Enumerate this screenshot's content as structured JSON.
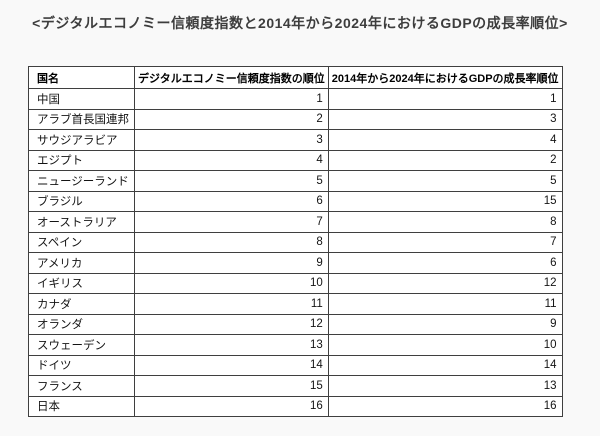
{
  "page": {
    "title": "<デジタルエコノミー信頼度指数と2014年から2024年におけるGDPの成長率順位>",
    "background_color": "#f9f9f9"
  },
  "table": {
    "headers": [
      "国名",
      "デジタルエコノミー信頼度指数の順位",
      "2014年から2024年におけるGDPの成長率順位"
    ],
    "border_color": "#3f3f3f",
    "cell_background": "#ffffff",
    "rows": [
      {
        "country": "中国",
        "digital_trust_rank": "1",
        "gdp_growth_rank": "1"
      },
      {
        "country": "アラブ首長国連邦",
        "digital_trust_rank": "2",
        "gdp_growth_rank": "3"
      },
      {
        "country": "サウジアラビア",
        "digital_trust_rank": "3",
        "gdp_growth_rank": "4"
      },
      {
        "country": "エジプト",
        "digital_trust_rank": "4",
        "gdp_growth_rank": "2"
      },
      {
        "country": "ニュージーランド",
        "digital_trust_rank": "5",
        "gdp_growth_rank": "5"
      },
      {
        "country": "ブラジル",
        "digital_trust_rank": "6",
        "gdp_growth_rank": "15"
      },
      {
        "country": "オーストラリア",
        "digital_trust_rank": "7",
        "gdp_growth_rank": "8"
      },
      {
        "country": "スペイン",
        "digital_trust_rank": "8",
        "gdp_growth_rank": "7"
      },
      {
        "country": "アメリカ",
        "digital_trust_rank": "9",
        "gdp_growth_rank": "6"
      },
      {
        "country": "イギリス",
        "digital_trust_rank": "10",
        "gdp_growth_rank": "12"
      },
      {
        "country": "カナダ",
        "digital_trust_rank": "11",
        "gdp_growth_rank": "11"
      },
      {
        "country": "オランダ",
        "digital_trust_rank": "12",
        "gdp_growth_rank": "9"
      },
      {
        "country": "スウェーデン",
        "digital_trust_rank": "13",
        "gdp_growth_rank": "10"
      },
      {
        "country": "ドイツ",
        "digital_trust_rank": "14",
        "gdp_growth_rank": "14"
      },
      {
        "country": "フランス",
        "digital_trust_rank": "15",
        "gdp_growth_rank": "13"
      },
      {
        "country": "日本",
        "digital_trust_rank": "16",
        "gdp_growth_rank": "16"
      }
    ]
  },
  "chart_data": {
    "type": "table",
    "title": "デジタルエコノミー信頼度指数と2014年から2024年におけるGDPの成長率順位",
    "columns": [
      "国名",
      "デジタルエコノミー信頼度指数の順位",
      "2014年から2024年におけるGDPの成長率順位"
    ],
    "rows": [
      [
        "中国",
        1,
        1
      ],
      [
        "アラブ首長国連邦",
        2,
        3
      ],
      [
        "サウジアラビア",
        3,
        4
      ],
      [
        "エジプト",
        4,
        2
      ],
      [
        "ニュージーランド",
        5,
        5
      ],
      [
        "ブラジル",
        6,
        15
      ],
      [
        "オーストラリア",
        7,
        8
      ],
      [
        "スペイン",
        8,
        7
      ],
      [
        "アメリカ",
        9,
        6
      ],
      [
        "イギリス",
        10,
        12
      ],
      [
        "カナダ",
        11,
        11
      ],
      [
        "オランダ",
        12,
        9
      ],
      [
        "スウェーデン",
        13,
        10
      ],
      [
        "ドイツ",
        14,
        14
      ],
      [
        "フランス",
        15,
        13
      ],
      [
        "日本",
        16,
        16
      ]
    ]
  }
}
